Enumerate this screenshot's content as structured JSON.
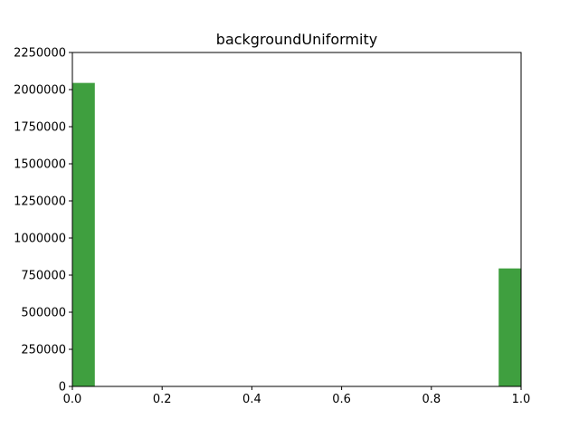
{
  "chart_data": {
    "type": "bar",
    "title": "backgroundUniformity",
    "xlabel": "",
    "ylabel": "",
    "xlim": [
      0,
      1
    ],
    "ylim": [
      0,
      2250000
    ],
    "grid": false,
    "legend": "none",
    "bar_color": "#3f9f3f",
    "bins": [
      {
        "x0": 0.0,
        "x1": 0.05,
        "value": 2045000
      },
      {
        "x0": 0.95,
        "x1": 1.0,
        "value": 795000
      }
    ],
    "x_ticks": [
      {
        "value": 0.0,
        "label": "0.0"
      },
      {
        "value": 0.2,
        "label": "0.2"
      },
      {
        "value": 0.4,
        "label": "0.4"
      },
      {
        "value": 0.6,
        "label": "0.6"
      },
      {
        "value": 0.8,
        "label": "0.8"
      },
      {
        "value": 1.0,
        "label": "1.0"
      }
    ],
    "y_ticks": [
      {
        "value": 0,
        "label": "0"
      },
      {
        "value": 250000,
        "label": "250000"
      },
      {
        "value": 500000,
        "label": "500000"
      },
      {
        "value": 750000,
        "label": "750000"
      },
      {
        "value": 1000000,
        "label": "1000000"
      },
      {
        "value": 1250000,
        "label": "1250000"
      },
      {
        "value": 1500000,
        "label": "1500000"
      },
      {
        "value": 1750000,
        "label": "1750000"
      },
      {
        "value": 2000000,
        "label": "2000000"
      },
      {
        "value": 2250000,
        "label": "2250000"
      }
    ]
  }
}
